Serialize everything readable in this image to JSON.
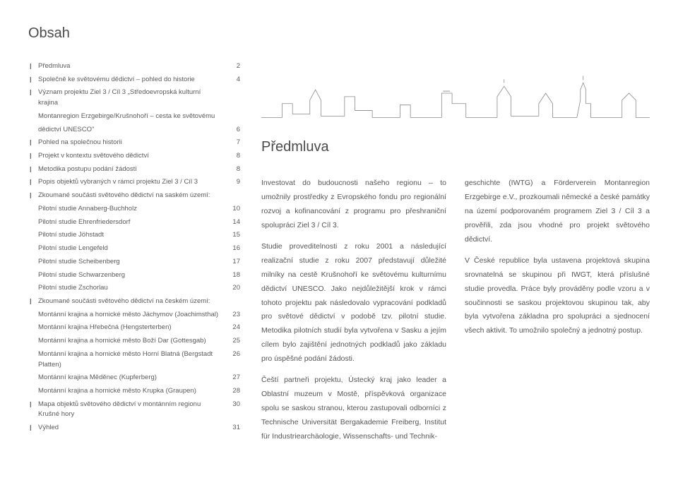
{
  "pageTitle": "Obsah",
  "sectionTitle": "Předmluva",
  "toc": [
    {
      "label": "Předmluva",
      "page": "2",
      "bullet": true
    },
    {
      "label": "Společně ke světovému dědictví – pohled do historie",
      "page": "4",
      "bullet": true
    },
    {
      "label": "Význam projektu Ziel 3 / Cíl 3 „Středoevropská kulturní krajina",
      "page": "",
      "bullet": true
    },
    {
      "label": "Montanregion Erzgebirge/Krušnohoří – cesta ke světovému",
      "page": "",
      "bullet": false,
      "indent": true
    },
    {
      "label": "dědictví UNESCO\"",
      "page": "6",
      "bullet": false,
      "indent": true
    },
    {
      "label": "Pohled na společnou historii",
      "page": "7",
      "bullet": true
    },
    {
      "label": "Projekt v kontextu světového dědictví",
      "page": "8",
      "bullet": true
    },
    {
      "label": "Metodika postupu podání žádosti",
      "page": "8",
      "bullet": true
    },
    {
      "label": "Popis objektů vybraných v rámci projektu Ziel 3 / Cíl 3",
      "page": "9",
      "bullet": true
    },
    {
      "label": "Zkoumané součásti světového dědictví na saském území:",
      "page": "",
      "bullet": true
    },
    {
      "label": "Pilotní studie Annaberg-Buchholz",
      "page": "10",
      "bullet": false,
      "indent": true
    },
    {
      "label": "Pilotní studie Ehrenfriedersdorf",
      "page": "14",
      "bullet": false,
      "indent": true
    },
    {
      "label": "Pilotní studie Jöhstadt",
      "page": "15",
      "bullet": false,
      "indent": true
    },
    {
      "label": "Pilotní studie Lengefeld",
      "page": "16",
      "bullet": false,
      "indent": true
    },
    {
      "label": "Pilotní studie Scheibenberg",
      "page": "17",
      "bullet": false,
      "indent": true
    },
    {
      "label": "Pilotní studie Schwarzenberg",
      "page": "18",
      "bullet": false,
      "indent": true
    },
    {
      "label": "Pilotní studie Zschorlau",
      "page": "20",
      "bullet": false,
      "indent": true
    },
    {
      "label": "Zkoumané součásti světového dědictví na českém území:",
      "page": "",
      "bullet": true
    },
    {
      "label": "Montánní krajina a hornické město Jáchymov (Joachimsthal)",
      "page": "23",
      "bullet": false,
      "indent": true
    },
    {
      "label": "Montánní krajina Hřebečná (Hengsterterben)",
      "page": "24",
      "bullet": false,
      "indent": true
    },
    {
      "label": "Montánní krajina a hornické město Boží Dar (Gottesgab)",
      "page": "25",
      "bullet": false,
      "indent": true
    },
    {
      "label": "Montánní krajina a hornické město Horní Blatná (Bergstadt Platten)",
      "page": "26",
      "bullet": false,
      "indent": true
    },
    {
      "label": "Montánní krajina Měděnec (Kupferberg)",
      "page": "27",
      "bullet": false,
      "indent": true
    },
    {
      "label": "Montánní krajina a hornické město Krupka (Graupen)",
      "page": "28",
      "bullet": false,
      "indent": true
    },
    {
      "label": "Mapa objektů světového dědictví v montánním regionu Krušné hory",
      "page": "30",
      "bullet": true
    },
    {
      "label": "Výhled",
      "page": "31",
      "bullet": true
    }
  ],
  "body": {
    "col1": {
      "p1": "Investovat do budoucnosti našeho regionu – to umožnily prostředky z Evropského fondu pro regionální rozvoj a kofinancování z programu pro přeshraniční spolupráci Ziel 3 / Cíl 3.",
      "p2": "Studie proveditelnosti z roku 2001 a následující realizační studie z roku 2007 představují důležité milníky na cestě Krušnohoří ke světovému kulturnímu dědictví UNESCO. Jako nejdůležitější krok v rámci tohoto projektu pak následovalo vypracování podkladů pro světové dědictví v podobě tzv. pilotní studie. Metodika pilotních studií byla vytvořena v Sasku a jejím cílem bylo zajištění jednotných podkladů jako základu pro úspěšné podání žádosti.",
      "p3": "Čeští partneři projektu, Ústecký kraj jako leader a Oblastní muzeum v Mostě, příspěvková organizace spolu se saskou stranou, kterou zastupovali odborníci z Technische Universität Bergakademie Freiberg, Institut für Industriearchäologie, Wissenschafts- und Technik-"
    },
    "col2": {
      "p1": "geschichte (IWTG) a Förderverein Montanregion Erzgebirge e.V., prozkoumali německé a české památky na území podporovaném programem Ziel 3 / Cíl 3 a prověřili, zda jsou vhodné pro projekt světového dědictví.",
      "p2": "V České republice byla ustavena projektová skupina srovnatelná se skupinou při IWGT, která příslušné studie provedla. Práce byly prováděny podle vzoru a v součinnosti se saskou projektovou skupinou tak, aby byla vytvořena základna pro spolupráci a sjednocení všech aktivit. To umožnilo společný a jednotný postup."
    }
  },
  "styles": {
    "bg": "#ffffff",
    "text": "#5a5a5a",
    "title": "#4a4a4a",
    "toc_fontsize": 9.5,
    "body_fontsize": 10.5,
    "silhouette_stroke": "#888888"
  }
}
